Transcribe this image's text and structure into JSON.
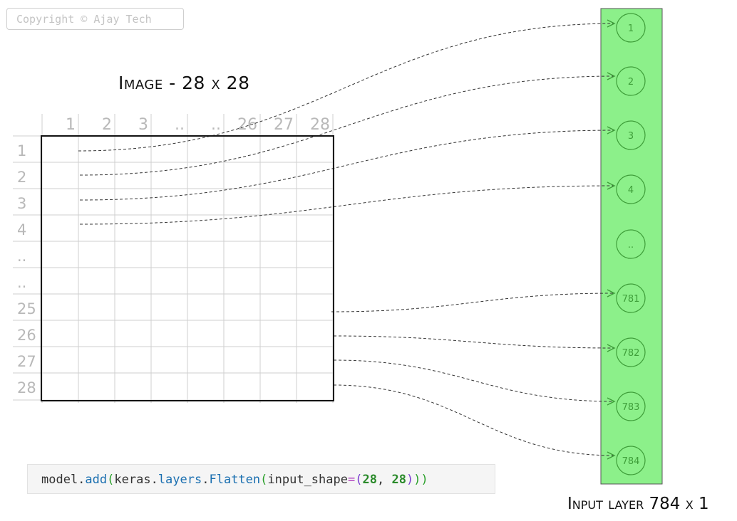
{
  "watermark": "Copyright © Ajay Tech",
  "image_title": "Image - 28 x 28",
  "input_layer_title": "Input layer 784 x 1",
  "column_labels": [
    "1",
    "2",
    "3",
    "..",
    "..",
    "26",
    "27",
    "28"
  ],
  "row_labels": [
    "1",
    "2",
    "3",
    "4",
    "..",
    "..",
    "25",
    "26",
    "27",
    "28"
  ],
  "neurons": [
    "1",
    "2",
    "3",
    "4",
    "..",
    "781",
    "782",
    "783",
    "784"
  ],
  "code": {
    "obj": "model.",
    "add": "add",
    "open1": "(",
    "keras": "keras.",
    "layers": "layers",
    "dot": ".",
    "flatten": "Flatten",
    "open2": "(",
    "param": "input_shape",
    "eq": "=",
    "open3": "(",
    "n1": "28",
    "comma": ", ",
    "n2": "28",
    "close3": ")",
    "close2": ")",
    "close1": ")"
  },
  "colors": {
    "input_layer_fill": "#8cf08a",
    "neuron_stroke": "#3f9e3a",
    "arrow": "#333333",
    "arrow_head": "#3f9e3a",
    "grid_line": "#cfcfcf",
    "axis_label": "#b8b8b8"
  }
}
